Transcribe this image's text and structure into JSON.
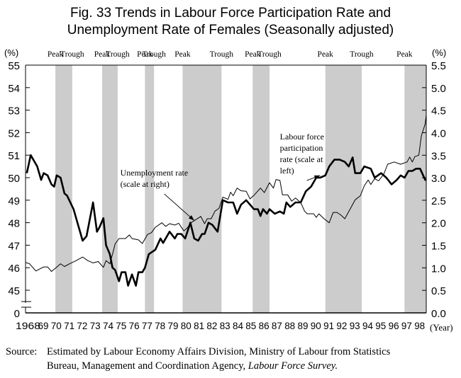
{
  "title_line1": "Fig. 33  Trends in Labour Force Participation Rate and",
  "title_line2": "Unemployment Rate of Females (Seasonally adjusted)",
  "source": {
    "label": "Source:",
    "line1": "Estimated by Labour Economy Affairs Division, Ministry of Labour from Statistics",
    "line2_plain": "Bureau, Management and Coordination Agency, ",
    "line2_italic": "Labour Force Survey."
  },
  "chart_data": {
    "type": "line",
    "title": "Fig. 33 Trends in Labour Force Participation Rate and Unemployment Rate of Females (Seasonally adjusted)",
    "xlabel": "(Year)",
    "ylabel_left": "(%)",
    "ylabel_right": "(%)",
    "x_range": [
      1968,
      1999
    ],
    "x_tick_labels": [
      "1968",
      "69",
      "70",
      "71",
      "72",
      "73",
      "74",
      "75",
      "76",
      "77",
      "78",
      "79",
      "80",
      "81",
      "82",
      "83",
      "84",
      "85",
      "86",
      "87",
      "88",
      "89",
      "90",
      "91",
      "92",
      "93",
      "94",
      "95",
      "96",
      "97",
      "98"
    ],
    "y_left_range": [
      45,
      55
    ],
    "y_left_ticks": [
      "0",
      "45",
      "46",
      "47",
      "48",
      "49",
      "50",
      "51",
      "52",
      "53",
      "54",
      "55"
    ],
    "y_left_break": true,
    "y_right_range": [
      0,
      5.5
    ],
    "y_right_ticks": [
      "0.0",
      "0.5",
      "1.0",
      "1.5",
      "2.0",
      "2.5",
      "3.0",
      "3.5",
      "4.0",
      "4.5",
      "5.0",
      "5.5"
    ],
    "grid": false,
    "shaded_periods": [
      {
        "from": 1970.3,
        "to": 1971.6,
        "start_label": "Peak",
        "end_label": "Trough"
      },
      {
        "from": 1973.9,
        "to": 1975.1,
        "start_label": "Peak",
        "end_label": "Trough"
      },
      {
        "from": 1977.2,
        "to": 1977.9,
        "start_label": "Peak",
        "end_label": "Trough"
      },
      {
        "from": 1980.1,
        "to": 1983.1,
        "start_label": "Peak",
        "end_label": "Trough"
      },
      {
        "from": 1985.5,
        "to": 1986.8,
        "start_label": "Peak",
        "end_label": "Trough"
      },
      {
        "from": 1991.1,
        "to": 1993.9,
        "start_label": "Peak",
        "end_label": "Trough"
      },
      {
        "from": 1997.2,
        "to": 1999.0,
        "start_label": "Peak",
        "end_label": ""
      }
    ],
    "series": [
      {
        "name": "Labour force participation rate (scale at left)",
        "axis": "left",
        "style": "thick",
        "points": [
          [
            1968.1,
            50.2
          ],
          [
            1968.4,
            51.0
          ],
          [
            1968.9,
            50.5
          ],
          [
            1969.2,
            49.9
          ],
          [
            1969.4,
            50.2
          ],
          [
            1969.7,
            50.1
          ],
          [
            1970.0,
            49.7
          ],
          [
            1970.2,
            49.6
          ],
          [
            1970.4,
            50.1
          ],
          [
            1970.7,
            50.0
          ],
          [
            1971.0,
            49.3
          ],
          [
            1971.2,
            49.2
          ],
          [
            1971.7,
            48.6
          ],
          [
            1972.4,
            47.2
          ],
          [
            1972.7,
            47.4
          ],
          [
            1973.2,
            48.9
          ],
          [
            1973.5,
            47.6
          ],
          [
            1973.7,
            47.8
          ],
          [
            1974.0,
            48.2
          ],
          [
            1974.2,
            47.0
          ],
          [
            1974.5,
            46.6
          ],
          [
            1974.7,
            46.0
          ],
          [
            1974.9,
            45.9
          ],
          [
            1975.2,
            45.4
          ],
          [
            1975.4,
            45.8
          ],
          [
            1975.7,
            45.8
          ],
          [
            1975.9,
            45.2
          ],
          [
            1976.2,
            45.7
          ],
          [
            1976.5,
            45.2
          ],
          [
            1976.7,
            45.8
          ],
          [
            1977.0,
            45.8
          ],
          [
            1977.2,
            46.0
          ],
          [
            1977.5,
            46.6
          ],
          [
            1978.0,
            46.8
          ],
          [
            1978.4,
            47.3
          ],
          [
            1978.6,
            47.1
          ],
          [
            1979.1,
            47.6
          ],
          [
            1979.5,
            47.3
          ],
          [
            1979.7,
            47.5
          ],
          [
            1980.0,
            47.5
          ],
          [
            1980.3,
            47.3
          ],
          [
            1980.7,
            48.0
          ],
          [
            1981.0,
            47.3
          ],
          [
            1981.3,
            47.2
          ],
          [
            1981.6,
            47.5
          ],
          [
            1981.8,
            47.5
          ],
          [
            1982.1,
            48.0
          ],
          [
            1982.4,
            47.9
          ],
          [
            1982.8,
            47.6
          ],
          [
            1983.2,
            49.0
          ],
          [
            1983.6,
            48.9
          ],
          [
            1984.0,
            48.9
          ],
          [
            1984.3,
            48.4
          ],
          [
            1984.6,
            48.8
          ],
          [
            1985.0,
            49.0
          ],
          [
            1985.6,
            48.6
          ],
          [
            1985.9,
            48.6
          ],
          [
            1986.1,
            48.3
          ],
          [
            1986.3,
            48.6
          ],
          [
            1986.6,
            48.4
          ],
          [
            1986.8,
            48.6
          ],
          [
            1987.2,
            48.4
          ],
          [
            1987.6,
            48.5
          ],
          [
            1987.9,
            48.4
          ],
          [
            1988.1,
            48.9
          ],
          [
            1988.4,
            48.7
          ],
          [
            1988.8,
            48.9
          ],
          [
            1989.2,
            48.9
          ],
          [
            1989.6,
            49.4
          ],
          [
            1990.0,
            49.6
          ],
          [
            1990.4,
            50.0
          ],
          [
            1990.7,
            50.0
          ],
          [
            1991.1,
            50.1
          ],
          [
            1991.4,
            50.5
          ],
          [
            1991.8,
            50.8
          ],
          [
            1992.2,
            50.8
          ],
          [
            1992.6,
            50.7
          ],
          [
            1992.9,
            50.5
          ],
          [
            1993.2,
            50.9
          ],
          [
            1993.4,
            50.2
          ],
          [
            1993.8,
            50.2
          ],
          [
            1994.1,
            50.5
          ],
          [
            1994.6,
            50.4
          ],
          [
            1994.9,
            50.0
          ],
          [
            1995.4,
            50.2
          ],
          [
            1995.8,
            50.0
          ],
          [
            1996.2,
            49.7
          ],
          [
            1996.6,
            49.9
          ],
          [
            1996.9,
            50.1
          ],
          [
            1997.2,
            50.0
          ],
          [
            1997.5,
            50.3
          ],
          [
            1997.8,
            50.3
          ],
          [
            1998.1,
            50.4
          ],
          [
            1998.4,
            50.4
          ],
          [
            1998.8,
            49.9
          ],
          [
            1998.9,
            49.9
          ]
        ]
      },
      {
        "name": "Unemployment rate (scale at right)",
        "axis": "right",
        "style": "thin",
        "points": [
          [
            1968.0,
            1.12
          ],
          [
            1968.3,
            1.09
          ],
          [
            1968.8,
            0.93
          ],
          [
            1969.4,
            1.02
          ],
          [
            1969.7,
            1.02
          ],
          [
            1970.0,
            0.92
          ],
          [
            1970.3,
            0.99
          ],
          [
            1970.7,
            1.09
          ],
          [
            1971.0,
            1.03
          ],
          [
            1971.4,
            1.09
          ],
          [
            1971.9,
            1.16
          ],
          [
            1972.4,
            1.24
          ],
          [
            1972.8,
            1.16
          ],
          [
            1973.2,
            1.11
          ],
          [
            1973.6,
            1.14
          ],
          [
            1974.0,
            1.01
          ],
          [
            1974.2,
            1.16
          ],
          [
            1974.5,
            1.09
          ],
          [
            1974.7,
            1.3
          ],
          [
            1974.9,
            1.53
          ],
          [
            1975.2,
            1.65
          ],
          [
            1975.7,
            1.65
          ],
          [
            1976.0,
            1.73
          ],
          [
            1976.2,
            1.65
          ],
          [
            1976.7,
            1.62
          ],
          [
            1977.0,
            1.54
          ],
          [
            1977.4,
            1.74
          ],
          [
            1977.7,
            1.78
          ],
          [
            1978.0,
            1.9
          ],
          [
            1978.5,
            2.0
          ],
          [
            1978.8,
            1.92
          ],
          [
            1979.1,
            1.98
          ],
          [
            1979.5,
            1.95
          ],
          [
            1979.8,
            1.99
          ],
          [
            1980.2,
            1.82
          ],
          [
            1980.5,
            1.9
          ],
          [
            1980.8,
            2.01
          ],
          [
            1981.5,
            2.14
          ],
          [
            1981.8,
            1.98
          ],
          [
            1982.0,
            2.09
          ],
          [
            1982.3,
            2.09
          ],
          [
            1982.6,
            2.26
          ],
          [
            1982.9,
            2.32
          ],
          [
            1983.2,
            2.57
          ],
          [
            1983.6,
            2.52
          ],
          [
            1983.8,
            2.68
          ],
          [
            1984.0,
            2.6
          ],
          [
            1984.3,
            2.77
          ],
          [
            1984.6,
            2.71
          ],
          [
            1985.0,
            2.7
          ],
          [
            1985.3,
            2.53
          ],
          [
            1985.6,
            2.61
          ],
          [
            1986.1,
            2.77
          ],
          [
            1986.4,
            2.67
          ],
          [
            1986.8,
            2.89
          ],
          [
            1987.1,
            2.77
          ],
          [
            1987.3,
            2.96
          ],
          [
            1987.6,
            2.94
          ],
          [
            1987.8,
            2.62
          ],
          [
            1988.2,
            2.62
          ],
          [
            1988.5,
            2.48
          ],
          [
            1988.8,
            2.55
          ],
          [
            1989.2,
            2.45
          ],
          [
            1989.5,
            2.26
          ],
          [
            1989.7,
            2.2
          ],
          [
            1990.2,
            2.2
          ],
          [
            1990.4,
            2.12
          ],
          [
            1990.6,
            2.2
          ],
          [
            1991.0,
            2.09
          ],
          [
            1991.4,
            2.0
          ],
          [
            1991.7,
            2.23
          ],
          [
            1992.0,
            2.23
          ],
          [
            1992.3,
            2.17
          ],
          [
            1992.6,
            2.09
          ],
          [
            1993.0,
            2.3
          ],
          [
            1993.4,
            2.51
          ],
          [
            1993.8,
            2.6
          ],
          [
            1994.1,
            2.82
          ],
          [
            1994.4,
            2.95
          ],
          [
            1994.6,
            2.85
          ],
          [
            1994.9,
            2.98
          ],
          [
            1995.2,
            2.93
          ],
          [
            1995.6,
            3.08
          ],
          [
            1995.9,
            3.3
          ],
          [
            1996.4,
            3.35
          ],
          [
            1996.9,
            3.3
          ],
          [
            1997.4,
            3.35
          ],
          [
            1997.6,
            3.46
          ],
          [
            1997.8,
            3.35
          ],
          [
            1998.0,
            3.47
          ],
          [
            1998.3,
            3.5
          ],
          [
            1998.5,
            3.93
          ],
          [
            1998.8,
            4.2
          ],
          [
            1998.9,
            4.4
          ]
        ]
      }
    ],
    "annotations": [
      {
        "text_lines": [
          "Unemployment rate",
          "(scale at right)"
        ],
        "points_to_series": "Unemployment rate (scale at right)",
        "target": [
          1981.0,
          2.05
        ],
        "label_anchor": [
          1975.3,
          3.05
        ]
      },
      {
        "text_lines": [
          "Labour force",
          "participation",
          "rate (scale at",
          "left)"
        ],
        "points_to_series": "Labour force participation rate (scale at left)",
        "target": [
          1990.7,
          50.1
        ],
        "label_anchor": [
          1987.6,
          51.7
        ]
      }
    ]
  }
}
